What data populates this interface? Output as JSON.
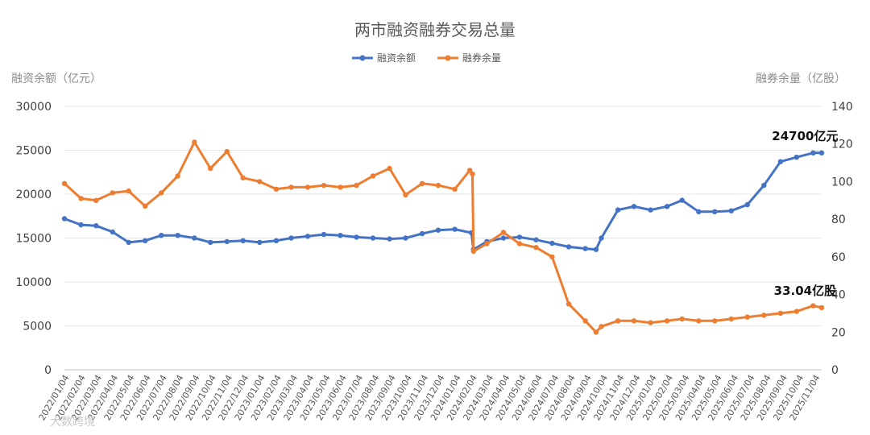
{
  "chart_data": {
    "type": "line",
    "title": "两市融资融券交易总量",
    "ylabel_left": "融资余额（亿元）",
    "ylabel_right": "融券余量（亿股）",
    "ylim_left": [
      0,
      30000
    ],
    "yticks_left": [
      "0",
      "5000",
      "10000",
      "15000",
      "20000",
      "25000",
      "30000"
    ],
    "ylim_right": [
      0,
      140
    ],
    "yticks_right": [
      "0",
      "20",
      "40",
      "60",
      "80",
      "100",
      "120",
      "140"
    ],
    "x_labels": [
      "2022/01/04",
      "2022/02/04",
      "2022/03/04",
      "2022/04/04",
      "2022/05/04",
      "2022/06/04",
      "2022/07/04",
      "2022/08/04",
      "2022/09/04",
      "2022/10/04",
      "2022/11/04",
      "2022/12/04",
      "2023/01/04",
      "2023/02/04",
      "2023/03/04",
      "2023/04/04",
      "2023/05/04",
      "2023/06/04",
      "2023/07/04",
      "2023/08/04",
      "2023/09/04",
      "2023/10/04",
      "2023/11/04",
      "2023/12/04",
      "2024/01/04",
      "2024/02/04",
      "2024/03/04",
      "2024/04/04",
      "2024/05/04",
      "2024/06/04",
      "2024/07/04",
      "2024/08/04",
      "2024/09/04",
      "2024/10/04",
      "2024/11/04",
      "2024/12/04",
      "2025/01/04",
      "2025/02/04",
      "2025/03/04",
      "2025/04/04",
      "2025/05/04",
      "2025/06/04",
      "2025/07/04",
      "2025/08/04",
      "2025/09/04",
      "2025/10/04",
      "2025/11/04"
    ],
    "legend_position": "top",
    "grid": true,
    "series": [
      {
        "name": "融资余额",
        "axis": "left",
        "color": "#4472C4",
        "points": [
          [
            "2022/01/04",
            17200
          ],
          [
            "2022/02/04",
            16500
          ],
          [
            "2022/03/04",
            16400
          ],
          [
            "2022/04/04",
            15700
          ],
          [
            "2022/05/04",
            14500
          ],
          [
            "2022/06/04",
            14700
          ],
          [
            "2022/07/04",
            15300
          ],
          [
            "2022/08/04",
            15300
          ],
          [
            "2022/09/04",
            15000
          ],
          [
            "2022/10/04",
            14500
          ],
          [
            "2022/11/04",
            14600
          ],
          [
            "2022/12/04",
            14700
          ],
          [
            "2023/01/04",
            14500
          ],
          [
            "2023/02/04",
            14700
          ],
          [
            "2023/03/04",
            15000
          ],
          [
            "2023/04/04",
            15200
          ],
          [
            "2023/05/04",
            15400
          ],
          [
            "2023/06/04",
            15300
          ],
          [
            "2023/07/04",
            15100
          ],
          [
            "2023/08/04",
            15000
          ],
          [
            "2023/09/04",
            14900
          ],
          [
            "2023/10/04",
            15000
          ],
          [
            "2023/11/04",
            15500
          ],
          [
            "2023/12/04",
            15900
          ],
          [
            "2024/01/04",
            16000
          ],
          [
            "2024/02/04",
            15600
          ],
          [
            "2024/02/08",
            13700
          ],
          [
            "2024/03/04",
            14600
          ],
          [
            "2024/04/04",
            15000
          ],
          [
            "2024/05/04",
            15100
          ],
          [
            "2024/06/04",
            14800
          ],
          [
            "2024/07/04",
            14400
          ],
          [
            "2024/08/04",
            14000
          ],
          [
            "2024/09/04",
            13800
          ],
          [
            "2024/09/24",
            13700
          ],
          [
            "2024/10/04",
            15000
          ],
          [
            "2024/11/04",
            18200
          ],
          [
            "2024/12/04",
            18600
          ],
          [
            "2025/01/04",
            18200
          ],
          [
            "2025/02/04",
            18600
          ],
          [
            "2025/03/04",
            19300
          ],
          [
            "2025/04/04",
            18000
          ],
          [
            "2025/05/04",
            18000
          ],
          [
            "2025/06/04",
            18100
          ],
          [
            "2025/07/04",
            18800
          ],
          [
            "2025/08/04",
            21000
          ],
          [
            "2025/09/04",
            23700
          ],
          [
            "2025/10/04",
            24200
          ],
          [
            "2025/11/04",
            24700
          ],
          [
            "2025/11/20",
            24700
          ]
        ]
      },
      {
        "name": "融券余量",
        "axis": "right",
        "color": "#ED7D31",
        "points": [
          [
            "2022/01/04",
            99
          ],
          [
            "2022/02/04",
            91
          ],
          [
            "2022/03/04",
            90
          ],
          [
            "2022/04/04",
            94
          ],
          [
            "2022/05/04",
            95
          ],
          [
            "2022/06/04",
            87
          ],
          [
            "2022/07/04",
            94
          ],
          [
            "2022/08/04",
            103
          ],
          [
            "2022/09/04",
            121
          ],
          [
            "2022/10/04",
            107
          ],
          [
            "2022/11/04",
            116
          ],
          [
            "2022/12/04",
            102
          ],
          [
            "2023/01/04",
            100
          ],
          [
            "2023/02/04",
            96
          ],
          [
            "2023/03/04",
            97
          ],
          [
            "2023/04/04",
            97
          ],
          [
            "2023/05/04",
            98
          ],
          [
            "2023/06/04",
            97
          ],
          [
            "2023/07/04",
            98
          ],
          [
            "2023/08/04",
            103
          ],
          [
            "2023/09/04",
            107
          ],
          [
            "2023/10/04",
            93
          ],
          [
            "2023/11/04",
            99
          ],
          [
            "2023/12/04",
            98
          ],
          [
            "2024/01/04",
            96
          ],
          [
            "2024/02/01",
            106
          ],
          [
            "2024/02/06",
            104
          ],
          [
            "2024/02/08",
            63
          ],
          [
            "2024/03/04",
            67
          ],
          [
            "2024/04/04",
            73
          ],
          [
            "2024/05/04",
            67
          ],
          [
            "2024/06/04",
            65
          ],
          [
            "2024/07/04",
            60
          ],
          [
            "2024/08/04",
            35
          ],
          [
            "2024/09/04",
            26
          ],
          [
            "2024/09/24",
            20
          ],
          [
            "2024/10/04",
            23
          ],
          [
            "2024/11/04",
            26
          ],
          [
            "2024/12/04",
            26
          ],
          [
            "2025/01/04",
            25
          ],
          [
            "2025/02/04",
            26
          ],
          [
            "2025/03/04",
            27
          ],
          [
            "2025/04/04",
            26
          ],
          [
            "2025/05/04",
            26
          ],
          [
            "2025/06/04",
            27
          ],
          [
            "2025/07/04",
            28
          ],
          [
            "2025/08/04",
            29
          ],
          [
            "2025/09/04",
            30
          ],
          [
            "2025/10/04",
            31
          ],
          [
            "2025/11/04",
            34
          ],
          [
            "2025/11/20",
            33
          ]
        ]
      }
    ],
    "annotations": [
      {
        "text": "24700亿元",
        "series": 0,
        "x": "2025/10/20",
        "y": 24700
      },
      {
        "text": "33.04亿股",
        "series": 1,
        "x": "2025/10/20",
        "y": 33.04
      }
    ]
  },
  "watermark": "大数跨境"
}
